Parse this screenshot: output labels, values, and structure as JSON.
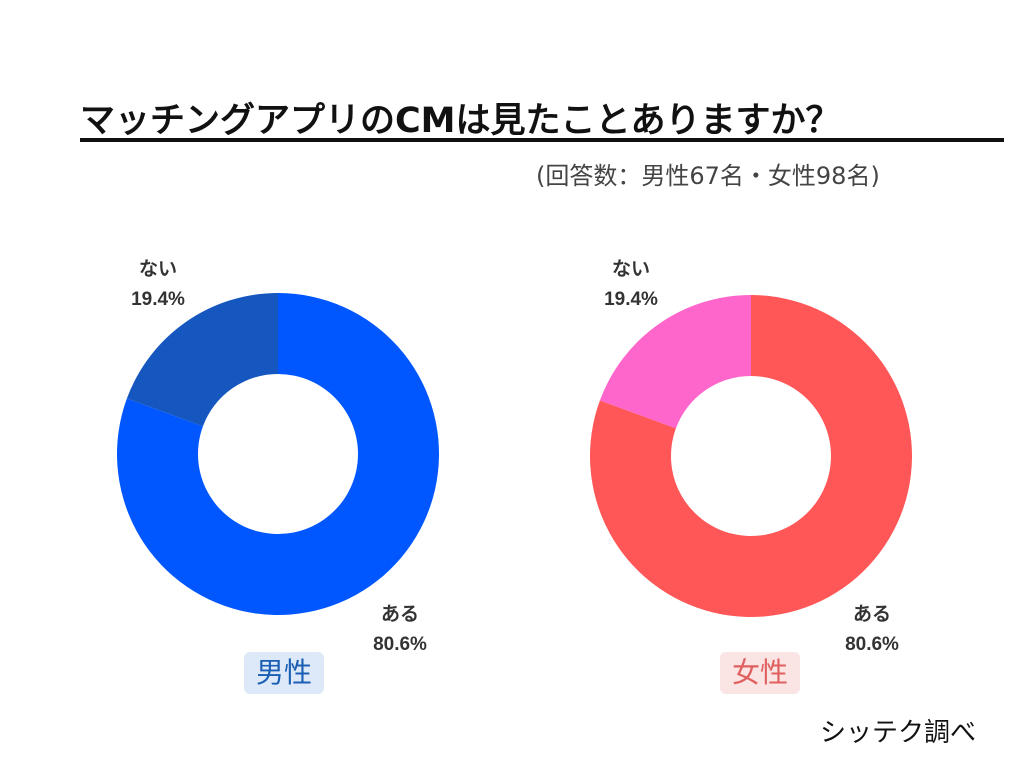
{
  "title": "マッチングアプリのCMは見たことありますか？",
  "subtitle": "(回答数：男性67名・女性98名)",
  "credit": "シッテク調べ",
  "chart_data": [
    {
      "type": "pie",
      "name": "男性",
      "slices": [
        {
          "label": "ない",
          "value": 19.4,
          "value_text": "19.4%",
          "color": "#1557bf"
        },
        {
          "label": "ある",
          "value": 80.6,
          "value_text": "80.6%",
          "color": "#0057ff"
        }
      ]
    },
    {
      "type": "pie",
      "name": "女性",
      "slices": [
        {
          "label": "ない",
          "value": 19.4,
          "value_text": "19.4%",
          "color": "#ff66cc"
        },
        {
          "label": "ある",
          "value": 80.6,
          "value_text": "80.6%",
          "color": "#ff5757"
        }
      ]
    }
  ]
}
